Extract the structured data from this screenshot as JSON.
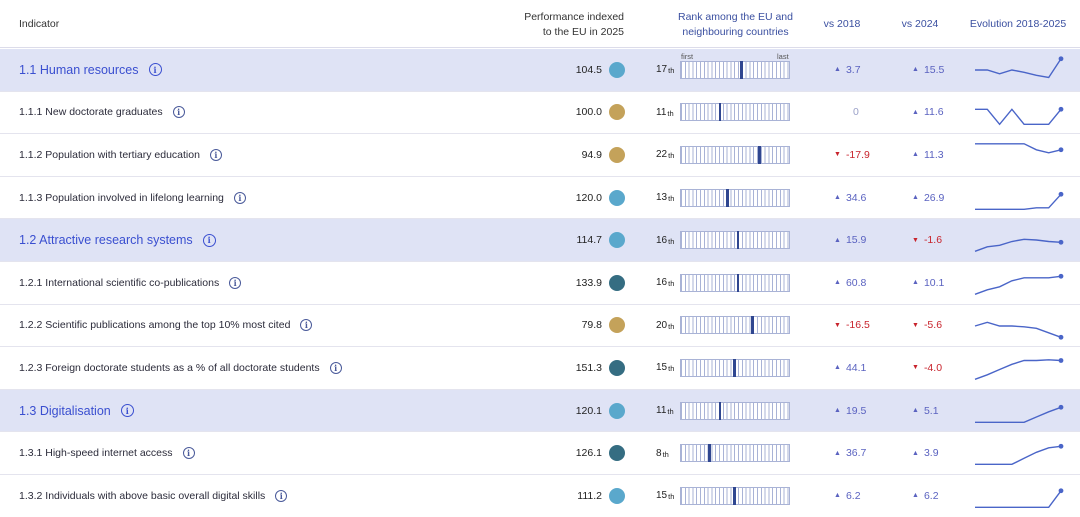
{
  "headers": {
    "indicator": "Indicator",
    "performance_line1": "Performance indexed",
    "performance_line2": "to the EU in 2025",
    "rank_line1": "Rank among the EU and",
    "rank_line2": "neighbouring countries",
    "vs2018": "vs 2018",
    "vs2024": "vs 2024",
    "evolution": "Evolution 2018-2025"
  },
  "rank_axis": {
    "first": "first",
    "last": "last",
    "total_positions": 30
  },
  "info_icon_glyph": "i",
  "colors": {
    "group_bg": "#dfe3f5",
    "up": "#5a62c0",
    "down": "#c8232c",
    "dot_light_blue": "#5aa8cc",
    "dot_tan": "#c4a25a",
    "dot_dark_teal": "#356d82",
    "spark": "#4a65c8"
  },
  "rows": [
    {
      "type": "group",
      "label": "1.1 Human resources",
      "performance": "104.5",
      "dot": "#5aa8cc",
      "rank": 17,
      "rank_suffix": "th",
      "vs2018": "3.7",
      "vs2018_dir": "up",
      "vs2024": "15.5",
      "vs2024_dir": "up",
      "evolution": [
        55,
        55,
        50,
        55,
        52,
        48,
        45,
        70
      ]
    },
    {
      "type": "item",
      "label": "1.1.1 New doctorate graduates",
      "performance": "100.0",
      "dot": "#c4a25a",
      "rank": 11,
      "rank_suffix": "th",
      "vs2018": "0",
      "vs2018_dir": "zero",
      "vs2024": "11.6",
      "vs2024_dir": "up",
      "evolution": [
        60,
        60,
        40,
        60,
        40,
        40,
        40,
        60
      ]
    },
    {
      "type": "item",
      "label": "1.1.2 Population with tertiary education",
      "performance": "94.9",
      "dot": "#c4a25a",
      "rank": 22,
      "rank_suffix": "th",
      "vs2018": "-17.9",
      "vs2018_dir": "down",
      "vs2024": "11.3",
      "vs2024_dir": "up",
      "evolution": [
        70,
        70,
        70,
        70,
        70,
        62,
        58,
        62
      ]
    },
    {
      "type": "item",
      "label": "1.1.3 Population involved in lifelong learning",
      "performance": "120.0",
      "dot": "#5aa8cc",
      "rank": 13,
      "rank_suffix": "th",
      "vs2018": "34.6",
      "vs2018_dir": "up",
      "vs2024": "26.9",
      "vs2024_dir": "up",
      "evolution": [
        40,
        40,
        40,
        40,
        40,
        42,
        42,
        60
      ]
    },
    {
      "type": "group",
      "label": "1.2 Attractive research systems",
      "performance": "114.7",
      "dot": "#5aa8cc",
      "rank": 16,
      "rank_suffix": "th",
      "vs2018": "15.9",
      "vs2018_dir": "up",
      "vs2024": "-1.6",
      "vs2024_dir": "down",
      "evolution": [
        40,
        46,
        48,
        53,
        56,
        55,
        53,
        52
      ]
    },
    {
      "type": "item",
      "label": "1.2.1 International scientific co-publications",
      "performance": "133.9",
      "dot": "#356d82",
      "rank": 16,
      "rank_suffix": "th",
      "vs2018": "60.8",
      "vs2018_dir": "up",
      "vs2024": "10.1",
      "vs2024_dir": "up",
      "evolution": [
        40,
        46,
        50,
        58,
        62,
        62,
        62,
        64
      ]
    },
    {
      "type": "item",
      "label": "1.2.2 Scientific publications among the top 10% most cited",
      "performance": "79.8",
      "dot": "#c4a25a",
      "rank": 20,
      "rank_suffix": "th",
      "vs2018": "-16.5",
      "vs2018_dir": "down",
      "vs2024": "-5.6",
      "vs2024_dir": "down",
      "evolution": [
        55,
        60,
        55,
        55,
        54,
        52,
        46,
        40
      ]
    },
    {
      "type": "item",
      "label": "1.2.3 Foreign doctorate students as a % of all doctorate students",
      "performance": "151.3",
      "dot": "#356d82",
      "rank": 15,
      "rank_suffix": "th",
      "vs2018": "44.1",
      "vs2018_dir": "up",
      "vs2024": "-4.0",
      "vs2024_dir": "down",
      "evolution": [
        40,
        46,
        53,
        60,
        65,
        65,
        66,
        65
      ]
    },
    {
      "type": "group",
      "label": "1.3 Digitalisation",
      "performance": "120.1",
      "dot": "#5aa8cc",
      "rank": 11,
      "rank_suffix": "th",
      "vs2018": "19.5",
      "vs2018_dir": "up",
      "vs2024": "5.1",
      "vs2024_dir": "up",
      "evolution": [
        40,
        40,
        40,
        40,
        40,
        47,
        54,
        60
      ]
    },
    {
      "type": "item",
      "label": "1.3.1 High-speed internet access",
      "performance": "126.1",
      "dot": "#356d82",
      "rank": 8,
      "rank_suffix": "th",
      "vs2018": "36.7",
      "vs2018_dir": "up",
      "vs2024": "3.9",
      "vs2024_dir": "up",
      "evolution": [
        40,
        40,
        40,
        40,
        48,
        56,
        62,
        64
      ]
    },
    {
      "type": "item",
      "label": "1.3.2 Individuals with above basic overall digital skills",
      "performance": "111.2",
      "dot": "#5aa8cc",
      "rank": 15,
      "rank_suffix": "th",
      "vs2018": "6.2",
      "vs2018_dir": "up",
      "vs2024": "6.2",
      "vs2024_dir": "up",
      "evolution": [
        40,
        40,
        40,
        40,
        40,
        40,
        40,
        62
      ]
    }
  ]
}
